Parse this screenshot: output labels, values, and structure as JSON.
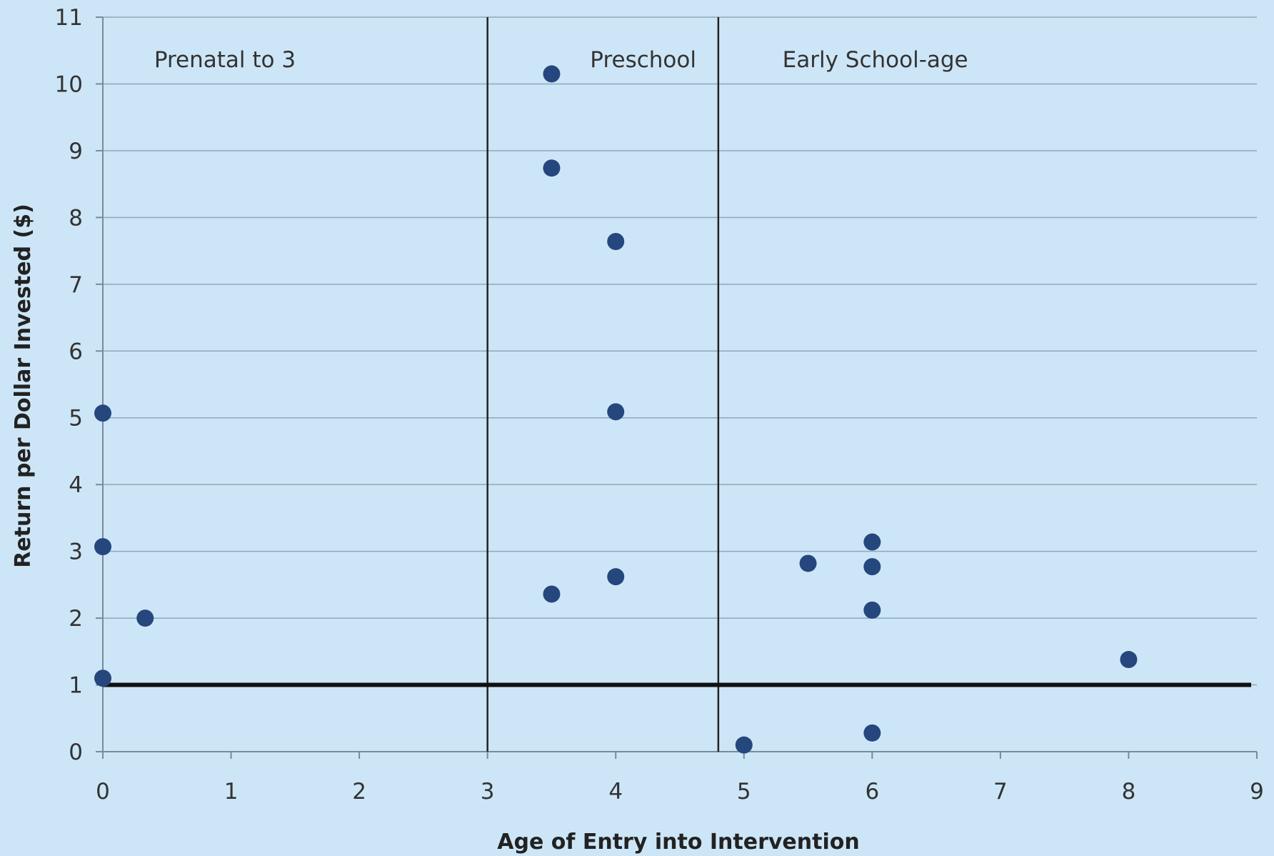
{
  "chart_data": {
    "type": "scatter",
    "title": "",
    "xlabel": "Age of Entry into Intervention",
    "ylabel": "Return per Dollar Invested ($)",
    "xlim": [
      0,
      9
    ],
    "ylim": [
      0,
      11
    ],
    "xticks": [
      "0",
      "1",
      "2",
      "3",
      "4",
      "5",
      "6",
      "7",
      "8",
      "9"
    ],
    "yticks": [
      "0",
      "1",
      "2",
      "3",
      "4",
      "5",
      "6",
      "7",
      "8",
      "9",
      "10",
      "11"
    ],
    "grid": "horizontal",
    "reference_line": {
      "y": 1
    },
    "period_dividers": [
      3,
      4.8
    ],
    "regions": [
      {
        "label": "Prenatal to 3",
        "x_start": 0,
        "x_end": 3
      },
      {
        "label": "Preschool",
        "x_start": 3,
        "x_end": 4.8
      },
      {
        "label": "Early School-age",
        "x_start": 4.8,
        "x_end": 9
      }
    ],
    "series": [
      {
        "points": [
          {
            "x": 0,
            "y": 5.07
          },
          {
            "x": 0,
            "y": 3.07
          },
          {
            "x": 0,
            "y": 1.1
          },
          {
            "x": 0.33,
            "y": 2.0
          },
          {
            "x": 3.5,
            "y": 10.15
          },
          {
            "x": 3.5,
            "y": 8.74
          },
          {
            "x": 3.5,
            "y": 2.36
          },
          {
            "x": 4,
            "y": 7.64
          },
          {
            "x": 4,
            "y": 5.09
          },
          {
            "x": 4,
            "y": 2.62
          },
          {
            "x": 5,
            "y": 0.1
          },
          {
            "x": 5.5,
            "y": 2.82
          },
          {
            "x": 6,
            "y": 3.14
          },
          {
            "x": 6,
            "y": 2.77
          },
          {
            "x": 6,
            "y": 2.12
          },
          {
            "x": 6,
            "y": 0.28
          },
          {
            "x": 8,
            "y": 1.38
          }
        ]
      }
    ],
    "colors": {
      "background": "#cde6f7",
      "point": "#26477d",
      "grid": "#8fa8b8",
      "axis": "#7a8a96",
      "divider": "#222222",
      "reference": "#111111"
    }
  }
}
